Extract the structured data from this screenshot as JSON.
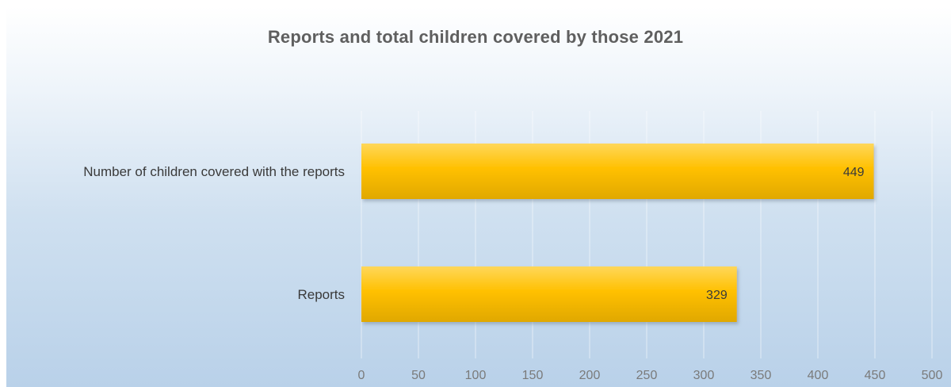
{
  "chart_data": {
    "type": "bar",
    "orientation": "horizontal",
    "title": "Reports and total children covered by those 2021",
    "categories": [
      "Number of children covered with the reports",
      "Reports"
    ],
    "values": [
      449,
      329
    ],
    "data_labels": [
      "449",
      "329"
    ],
    "xlim": [
      0,
      500
    ],
    "x_ticks": [
      0,
      50,
      100,
      150,
      200,
      250,
      300,
      350,
      400,
      450,
      500
    ],
    "x_tick_labels": [
      "0",
      "50",
      "100",
      "150",
      "200",
      "250",
      "300",
      "350",
      "400",
      "450",
      "500"
    ],
    "xlabel": "",
    "ylabel": "",
    "grid": true,
    "legend": "none",
    "bar_color": "#ffc000",
    "bar_color_light": "#ffd75a",
    "bar_color_dark": "#e0a800",
    "background_top": "#ffffff",
    "background_bottom": "#b9d1e9"
  }
}
